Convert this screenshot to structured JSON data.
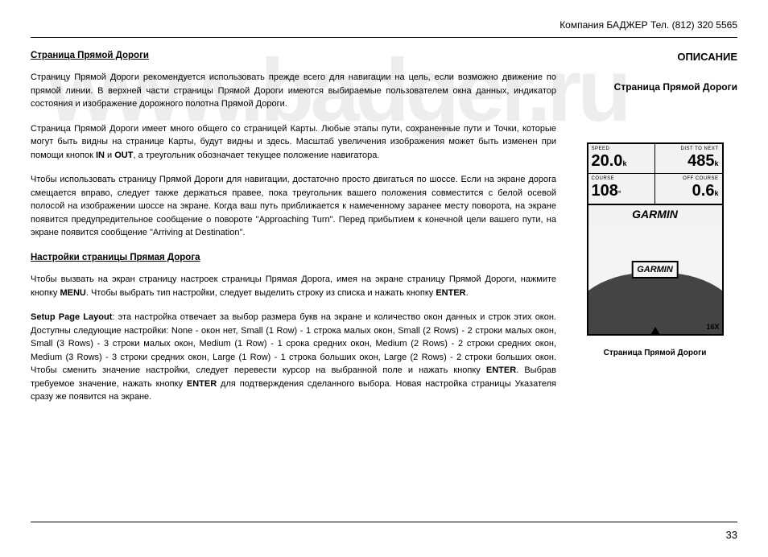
{
  "header": "Компания БАДЖЕР   Тел.  (812)  320 5565",
  "left": {
    "title1": "Страница Прямой Дороги",
    "p1": "Страницу Прямой Дороги рекомендуется использовать прежде всего для навигации на цель, если возможно движение по прямой линии. В верхней части страницы Прямой Дороги имеются выбираемые пользователем окна данных, индикатор состояния и изображение дорожного полотна Прямой Дороги.",
    "p2a": "Страница Прямой Дороги имеет много общего со страницей Карты. Любые этапы пути, сохраненные пути и Точки, которые могут быть видны на странице Карты, будут видны и здесь. Масштаб увеличения изображения может быть изменен при помощи кнопок ",
    "p2b": " и ",
    "p2c": ", а треугольник обозначает текущее положение навигатора.",
    "p3": "Чтобы использовать страницу Прямой Дороги для навигации, достаточно просто  двигаться по шоссе. Если на экране дорога смещается вправо, следует также держаться правее, пока треугольник вашего положения совместится с белой осевой полосой на изображении шоссе на экране. Когда ваш путь приближается к намеченному заранее месту поворота, на экране появится предупредительное сообщение о повороте \"Approaching Turn\". Перед прибытием к конечной цели вашего пути, на экране появится сообщение \"Arriving at Destination\".",
    "title2": "Настройки страницы Прямая Дорога",
    "p4a": "Чтобы вызвать на экран страницу настроек страницы Прямая Дорога, имея на экране страницу Прямой Дороги, нажмите кнопку ",
    "p4b": ". Чтобы выбрать тип настройки, следует выделить строку из списка и нажать кнопку ",
    "p5a": ": эта настройка отвечает за выбор размера букв на экране и количество окон данных и строк этих окон. Доступны следующие настройки: None - окон нет, Small (1 Row) - 1 строка малых окон, Small (2 Rows) - 2 строки малых окон, Small (3 Rows) - 3 строки малых окон, Medium (1 Row) - 1 срока средних окон, Medium (2 Rows) - 2 строки средних окон, Medium (3 Rows) - 3 строки средних окон, Large (1 Row) - 1 строка больших окон, Large (2 Rows) - 2 строки больших окон. Чтобы сменить значение настройки, следует перевести курсор на выбранной поле и нажать кнопку ",
    "p5b": ". Выбрав требуемое значение, нажать кнопку ",
    "p5c": " для подтверждения сделанного выбора. Новая настройка страницы Указателя сразу же появится на экране.",
    "b_in": "IN",
    "b_out": "OUT",
    "b_menu": "MENU",
    "b_enter": "ENTER",
    "b_setup": "Setup Page Layout"
  },
  "right": {
    "title": "ОПИСАНИЕ",
    "sub": "Страница Прямой Дороги",
    "caption": "Страница Прямой Дороги"
  },
  "device": {
    "speed_lbl": "SPEED",
    "speed_val": "20.0",
    "speed_unit": "k",
    "dist_lbl": "DIST TO NEXT",
    "dist_val": "485",
    "dist_unit": "k",
    "course_lbl": "COURSE",
    "course_val": "108",
    "course_unit": "°",
    "off_lbl": "OFF COURSE",
    "off_val": "0.6",
    "off_unit": "k",
    "brand": "GARMIN",
    "sign": "GARMIN",
    "zoom": "16X"
  },
  "watermark": "www.badger.ru",
  "page_num": "33"
}
